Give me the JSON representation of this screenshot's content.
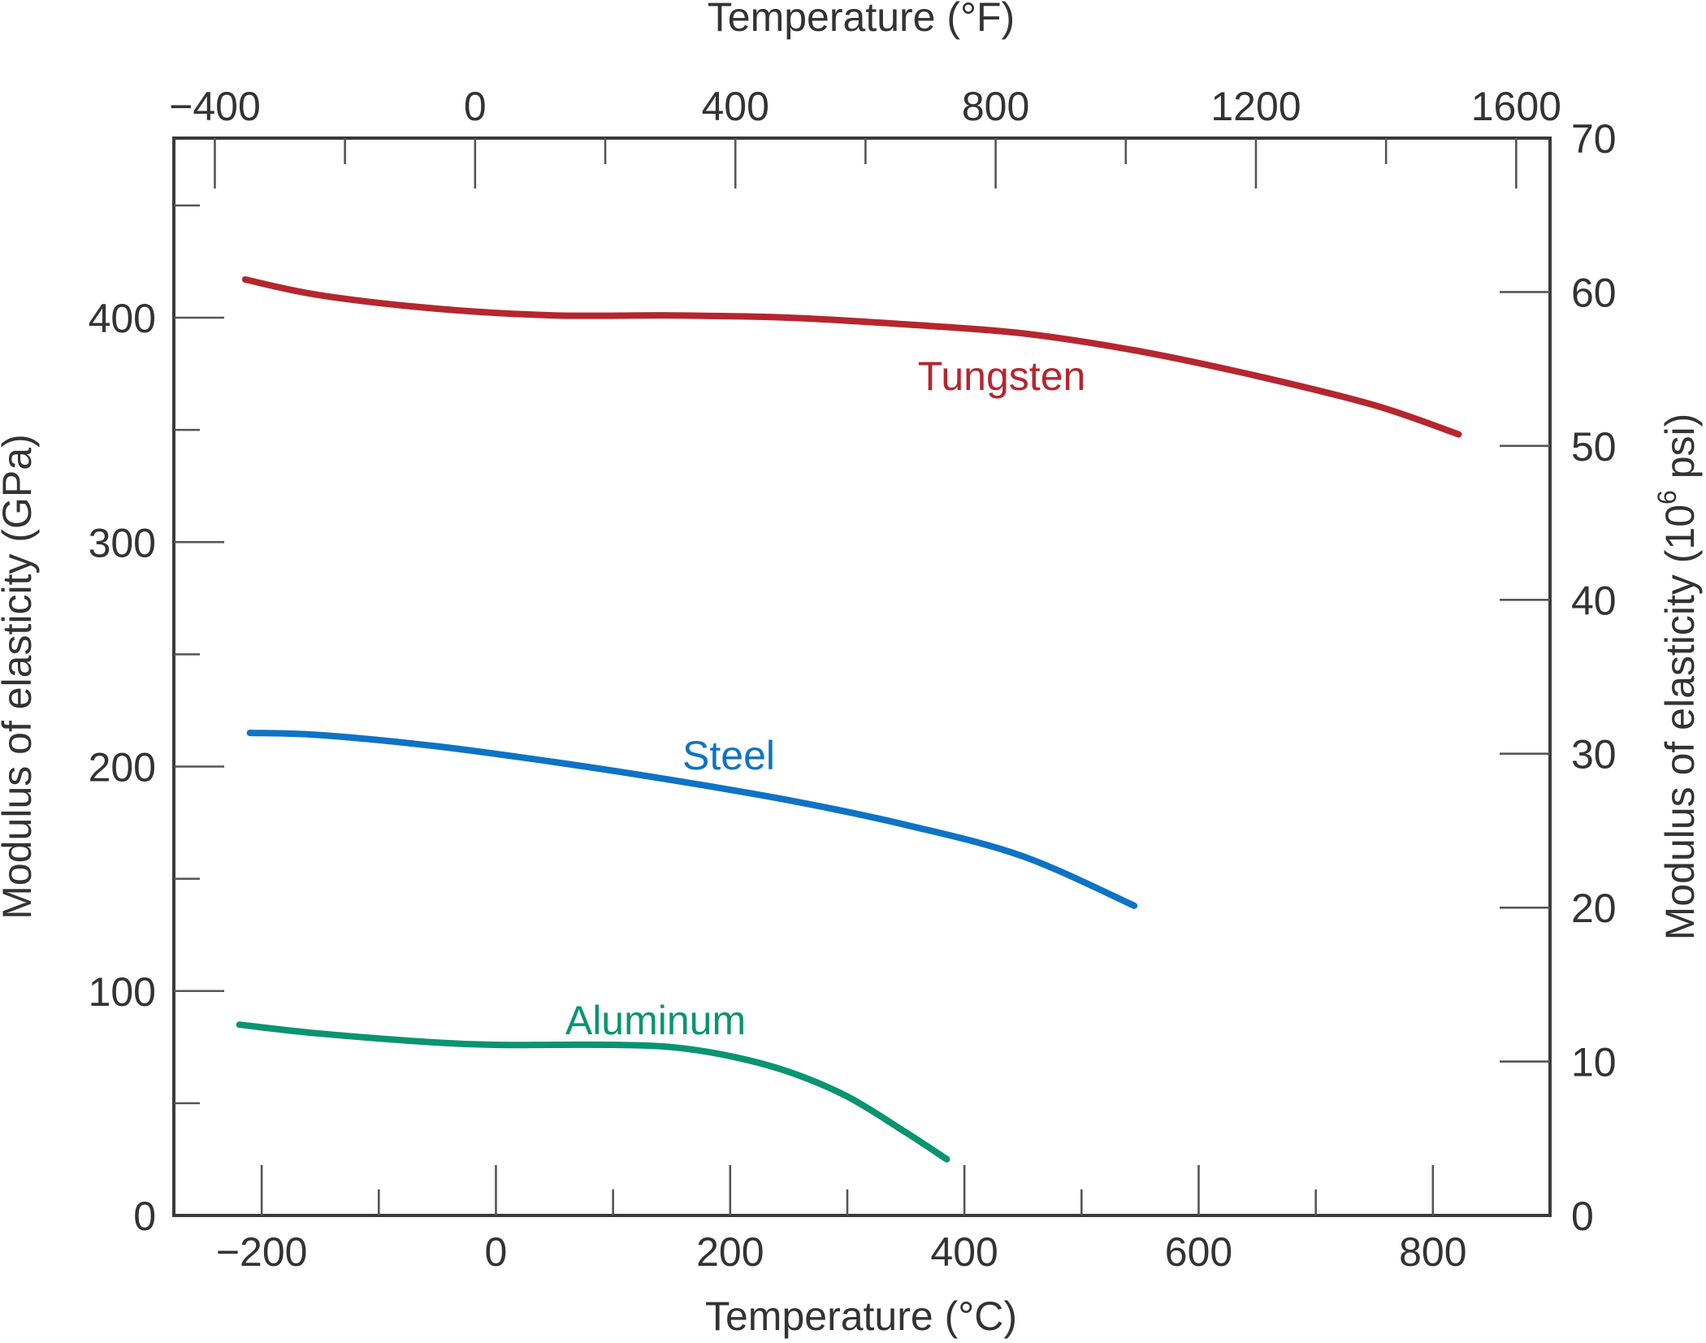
{
  "chart_data": {
    "type": "line",
    "title": "",
    "xlabel_bottom": "Temperature (°C)",
    "xlabel_top": "Temperature (°F)",
    "ylabel_left": "Modulus of elasticity (GPa)",
    "ylabel_right": {
      "prefix": "Modulus of elasticity (10",
      "superscript": "6",
      "suffix": " psi)"
    },
    "xlim_c": [
      -275,
      900
    ],
    "ylim_gpa": [
      0,
      480
    ],
    "ylim_psi": [
      0,
      70
    ],
    "x_ticks_c": [
      -200,
      0,
      200,
      400,
      600,
      800
    ],
    "x_tick_labels_c": [
      "−200",
      "0",
      "200",
      "400",
      "600",
      "800"
    ],
    "x_minor_ticks_c": [
      -100,
      100,
      300,
      500,
      700
    ],
    "x_ticks_f": [
      -400,
      0,
      400,
      800,
      1200,
      1600
    ],
    "x_tick_labels_f": [
      "−400",
      "0",
      "400",
      "800",
      "1200",
      "1600"
    ],
    "x_minor_ticks_f": [
      -200,
      200,
      600,
      1000,
      1400
    ],
    "y_ticks_gpa": [
      0,
      100,
      200,
      300,
      400
    ],
    "y_tick_labels_gpa": [
      "0",
      "100",
      "200",
      "300",
      "400"
    ],
    "y_minor_ticks_gpa": [
      50,
      150,
      250,
      350,
      450
    ],
    "y_ticks_psi": [
      0,
      10,
      20,
      30,
      40,
      50,
      60,
      70
    ],
    "y_tick_labels_psi": [
      "0",
      "10",
      "20",
      "30",
      "40",
      "50",
      "60",
      "70"
    ],
    "grid": false,
    "series": [
      {
        "name": "Tungsten",
        "color": "#b5262e",
        "x": [
          -214,
          -150,
          -50,
          50,
          150,
          250,
          350,
          450,
          550,
          650,
          750,
          822
        ],
        "y": [
          417,
          410,
          404,
          401,
          401,
          400,
          397,
          393,
          385,
          374,
          361,
          348
        ]
      },
      {
        "name": "Steel",
        "color": "#0d73c4",
        "x": [
          -210,
          -150,
          -50,
          50,
          150,
          250,
          350,
          450,
          545
        ],
        "y": [
          215,
          214,
          209,
          202,
          194,
          185,
          174,
          160,
          138
        ]
      },
      {
        "name": "Aluminum",
        "color": "#0a9471",
        "x": [
          -219,
          -150,
          -50,
          0,
          50,
          100,
          150,
          200,
          250,
          300,
          350,
          385
        ],
        "y": [
          85,
          81,
          77,
          76,
          76,
          76,
          75,
          71,
          64,
          53,
          37,
          25
        ]
      }
    ]
  }
}
